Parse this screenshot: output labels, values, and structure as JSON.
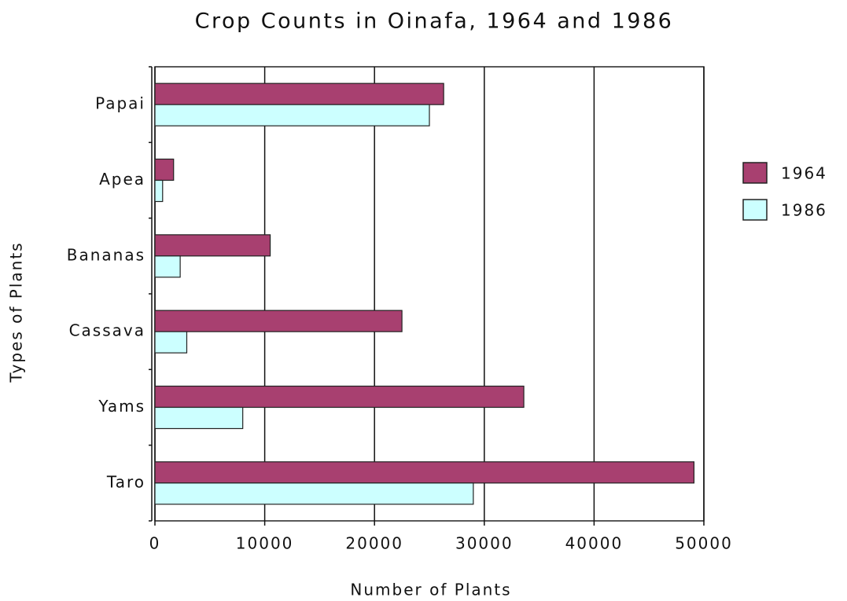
{
  "chart_data": {
    "type": "bar",
    "orientation": "horizontal",
    "title": "Crop Counts in Oinafa, 1964 and 1986",
    "xlabel": "Number of Plants",
    "ylabel": "Types of Plants",
    "categories": [
      "Papai",
      "Apea",
      "Bananas",
      "Cassava",
      "Yams",
      "Taro"
    ],
    "series": [
      {
        "name": "1964",
        "color": "#a84070",
        "values": [
          26300,
          1700,
          10500,
          22500,
          33600,
          49100
        ]
      },
      {
        "name": "1986",
        "color": "#ccffff",
        "values": [
          25000,
          700,
          2300,
          2900,
          8000,
          29000
        ]
      }
    ],
    "xlim": [
      0,
      50000
    ],
    "xticks": [
      0,
      10000,
      20000,
      30000,
      40000,
      50000
    ],
    "grid": true,
    "legend": "right"
  }
}
